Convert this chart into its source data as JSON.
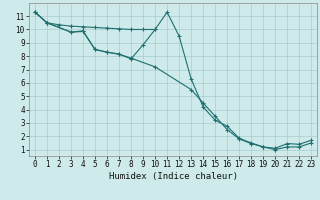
{
  "xlabel": "Humidex (Indice chaleur)",
  "bg_color": "#ceeaea",
  "grid_color": "#a8cccc",
  "line_color": "#1e7070",
  "xlim": [
    -0.5,
    23.5
  ],
  "ylim": [
    0.5,
    12
  ],
  "xticks": [
    0,
    1,
    2,
    3,
    4,
    5,
    6,
    7,
    8,
    9,
    10,
    11,
    12,
    13,
    14,
    15,
    16,
    17,
    18,
    19,
    20,
    21,
    22,
    23
  ],
  "yticks": [
    1,
    2,
    3,
    4,
    5,
    6,
    7,
    8,
    9,
    10,
    11
  ],
  "curve_a_x": [
    0,
    1,
    2,
    3,
    4,
    5,
    6,
    7,
    8,
    9,
    10
  ],
  "curve_a_y": [
    11.3,
    10.5,
    10.35,
    10.25,
    10.2,
    10.15,
    10.1,
    10.05,
    10.0,
    10.0,
    10.0
  ],
  "curve_b_x": [
    0,
    1,
    3,
    4,
    5,
    6,
    7,
    8,
    9,
    10,
    11,
    12,
    13,
    14,
    15,
    16,
    17,
    18,
    19,
    20,
    21,
    22,
    23
  ],
  "curve_b_y": [
    11.3,
    10.5,
    9.8,
    9.9,
    8.5,
    8.3,
    8.15,
    7.8,
    8.85,
    10.0,
    11.3,
    9.5,
    6.3,
    4.2,
    3.2,
    2.75,
    1.85,
    1.5,
    1.2,
    1.1,
    1.45,
    1.4,
    1.7
  ],
  "curve_c_x": [
    0,
    1,
    3,
    4,
    5,
    6,
    7,
    8,
    10,
    13,
    14,
    15,
    16,
    17,
    18,
    19,
    20,
    21,
    22,
    23
  ],
  "curve_c_y": [
    11.3,
    10.5,
    9.8,
    9.85,
    8.5,
    8.3,
    8.15,
    7.85,
    7.2,
    5.5,
    4.5,
    3.5,
    2.5,
    1.8,
    1.45,
    1.2,
    1.0,
    1.2,
    1.2,
    1.5
  ]
}
